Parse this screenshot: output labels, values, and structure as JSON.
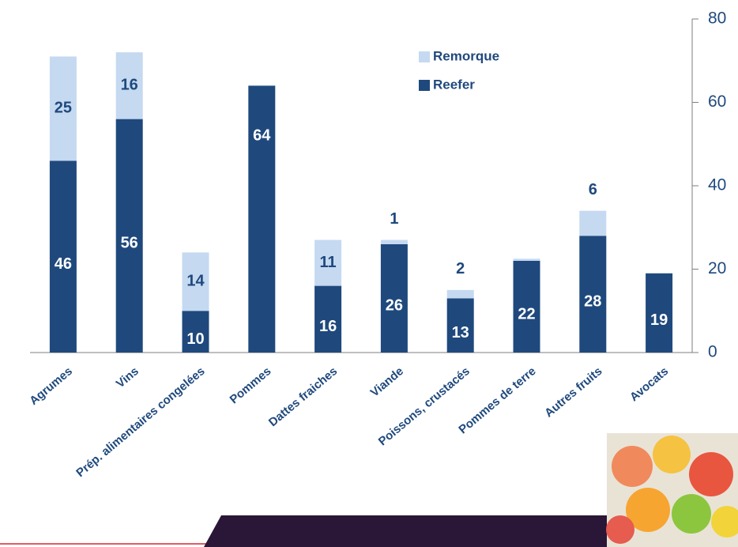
{
  "chart_data": {
    "type": "stacked_bar",
    "categories": [
      "Agrumes",
      "Vins",
      "Prép. alimentaires congelées",
      "Pommes",
      "Dattes fraiches",
      "Viande",
      "Poissons, crustacés",
      "Pommes de terre",
      "Autres fruits",
      "Avocats"
    ],
    "series": [
      {
        "name": "Reefer",
        "color": "#1f497d",
        "values": [
          46,
          56,
          10,
          64,
          16,
          26,
          13,
          22,
          28,
          19
        ]
      },
      {
        "name": "Remorque",
        "color": "#c5d9f1",
        "values": [
          25,
          16,
          14,
          null,
          11,
          1,
          2,
          0.5,
          6,
          null
        ],
        "value_labels": [
          "25",
          "16",
          "14",
          null,
          "11",
          "1",
          "2",
          null,
          "6",
          null
        ]
      }
    ],
    "ylim": [
      0,
      80
    ],
    "yticks": [
      0,
      20,
      40,
      60,
      80
    ],
    "y_axis_side": "right",
    "legend": "top-right"
  }
}
